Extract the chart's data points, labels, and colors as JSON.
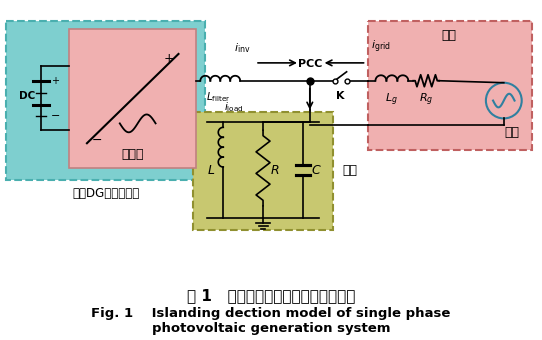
{
  "title_cn": "图 1   单相光伏发电系统孤岛检测模型",
  "title_en_line1": "Fig. 1    Islanding dection model of single phase",
  "title_en_line2": "photovoltaic generation system",
  "bg_color": "#ffffff",
  "inverter_box_color": "#7ecfcf",
  "inverter_box_edge": "#4aafaf",
  "inverter_fill_color": "#f0b0b0",
  "grid_box_color": "#f0b0b0",
  "grid_box_edge": "#c06060",
  "load_box_color": "#c8c870",
  "load_box_edge": "#909030",
  "label_inverter": "逆变器",
  "label_dg": "基于DG光伏逆变器",
  "label_grid_top": "电网",
  "label_grid_bottom": "电网",
  "label_load": "负载",
  "label_pcc": "PCC",
  "label_K": "K",
  "label_DC": "DC",
  "label_L": "L",
  "label_R": "R",
  "label_C": "C"
}
